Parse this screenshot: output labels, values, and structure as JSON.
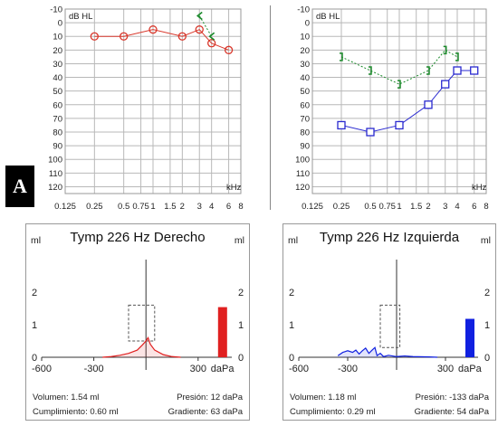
{
  "figure_label": "A",
  "chart_data": [
    {
      "type": "line",
      "unit_label": "dB HL",
      "x_unit": "kHz",
      "x_ticks": [
        "0.125",
        "0.25",
        "0.5",
        "0.75",
        "1",
        "1.5",
        "2",
        "3",
        "4",
        "6",
        "8"
      ],
      "y_ticks": [
        -10,
        0,
        10,
        20,
        30,
        40,
        50,
        60,
        70,
        80,
        90,
        100,
        110,
        120
      ],
      "ylim": [
        -10,
        125
      ],
      "y_inverted": true,
      "grid": true,
      "series": [
        {
          "kind": "air",
          "symbol": "circle",
          "color": "#d9382c",
          "x": [
            0.25,
            0.5,
            1,
            2,
            3,
            4,
            6
          ],
          "y": [
            10,
            10,
            5,
            10,
            5,
            15,
            20
          ]
        },
        {
          "kind": "bone",
          "symbol": "angle",
          "color": "#1a8a2a",
          "x": [
            3,
            4
          ],
          "y": [
            -5,
            10
          ]
        }
      ]
    },
    {
      "type": "line",
      "unit_label": "dB HL",
      "x_unit": "kHz",
      "x_ticks": [
        "0.125",
        "0.25",
        "0.5",
        "0.75",
        "1",
        "1.5",
        "2",
        "3",
        "4",
        "6",
        "8"
      ],
      "y_ticks": [
        -10,
        0,
        10,
        20,
        30,
        40,
        50,
        60,
        70,
        80,
        90,
        100,
        110,
        120
      ],
      "ylim": [
        -10,
        125
      ],
      "y_inverted": true,
      "grid": true,
      "series": [
        {
          "kind": "air",
          "symbol": "square",
          "color": "#2a2ad0",
          "x": [
            0.25,
            0.5,
            1,
            2,
            3,
            4,
            6
          ],
          "y": [
            75,
            80,
            75,
            60,
            45,
            35,
            35
          ]
        },
        {
          "kind": "bone",
          "symbol": "bracket",
          "color": "#1a8a2a",
          "x": [
            0.25,
            0.5,
            1,
            2,
            3,
            4
          ],
          "y": [
            25,
            35,
            45,
            35,
            20,
            25
          ]
        }
      ]
    },
    {
      "type": "area",
      "title": "Tymp 226 Hz Derecho",
      "y_unit": "ml",
      "x_unit": "daPa",
      "x_ticks": [
        "-600",
        "-300",
        "300"
      ],
      "y_ticks": [
        "0",
        "1",
        "2"
      ],
      "xlim": [
        -600,
        400
      ],
      "ylim": [
        0,
        2.5
      ],
      "color": "#e02020",
      "curve": {
        "x": [
          -250,
          -200,
          -150,
          -100,
          -50,
          -20,
          0,
          12,
          25,
          50,
          100,
          150,
          200
        ],
        "y": [
          0.0,
          0.02,
          0.06,
          0.12,
          0.22,
          0.38,
          0.5,
          0.6,
          0.4,
          0.22,
          0.08,
          0.02,
          0.0
        ]
      },
      "volume_bar": 1.54,
      "window": {
        "x": [
          -100,
          50
        ],
        "y": [
          0.5,
          1.6
        ]
      },
      "stats": {
        "volumen": "Volumen: 1.54 ml",
        "presion": "Presión: 12 daPa",
        "cumplimiento": "Cumplimiento: 0.60 ml",
        "gradiente": "Gradiente: 63 daPa"
      }
    },
    {
      "type": "area",
      "title": "Tymp 226 Hz Izquierda",
      "y_unit": "ml",
      "x_unit": "daPa",
      "x_ticks": [
        "-600",
        "-300",
        "300"
      ],
      "y_ticks": [
        "0",
        "1",
        "2"
      ],
      "xlim": [
        -600,
        400
      ],
      "ylim": [
        0,
        2.5
      ],
      "color": "#1020e0",
      "curve": {
        "x": [
          -360,
          -330,
          -300,
          -270,
          -250,
          -230,
          -210,
          -190,
          -170,
          -150,
          -133,
          -120,
          -100,
          -80,
          -50,
          0,
          50,
          100,
          200,
          250
        ],
        "y": [
          0.05,
          0.15,
          0.2,
          0.15,
          0.22,
          0.1,
          0.2,
          0.28,
          0.12,
          0.22,
          0.3,
          0.05,
          0.12,
          0.02,
          0.06,
          0.02,
          0.04,
          0.02,
          0.01,
          0.0
        ]
      },
      "volume_bar": 1.18,
      "window": {
        "x": [
          -100,
          20
        ],
        "y": [
          0.3,
          1.6
        ]
      },
      "stats": {
        "volumen": "Volumen: 1.18 ml",
        "presion": "Presión: -133 daPa",
        "cumplimiento": "Cumplimiento: 0.29 ml",
        "gradiente": "Gradiente: 54 daPa"
      }
    }
  ]
}
